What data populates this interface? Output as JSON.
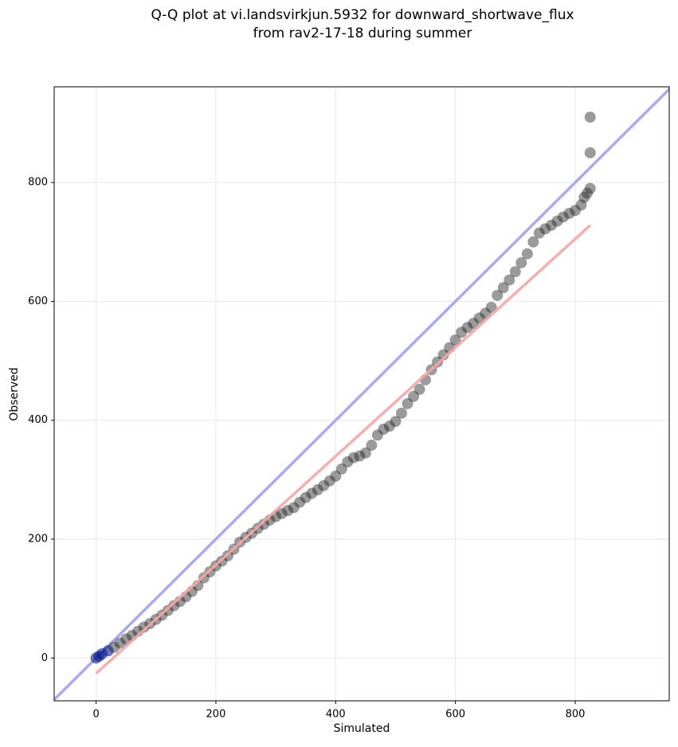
{
  "chart_data": {
    "type": "scatter",
    "title": [
      "Q-Q plot at vi.landsvirkjun.5932 for downward_shortwave_flux",
      "from rav2-17-18 during summer"
    ],
    "xlabel": "Simulated",
    "ylabel": "Observed",
    "xlim": [
      -70,
      957
    ],
    "ylim": [
      -72,
      961
    ],
    "xticks": [
      0,
      200,
      400,
      600,
      800
    ],
    "yticks": [
      0,
      200,
      400,
      600,
      800
    ],
    "grid": true,
    "color": "#222222",
    "early_color": "#0a1a8a",
    "identity_line_color": "#aaaaf2",
    "fit_line": {
      "x": [
        0,
        825
      ],
      "y": [
        -26,
        728
      ],
      "color": "#f5a5a5"
    },
    "x": [
      0,
      5,
      10,
      20,
      30,
      40,
      50,
      60,
      70,
      80,
      90,
      100,
      110,
      120,
      130,
      140,
      150,
      160,
      170,
      180,
      190,
      200,
      210,
      220,
      230,
      240,
      250,
      260,
      270,
      280,
      290,
      300,
      310,
      320,
      330,
      340,
      350,
      360,
      370,
      380,
      390,
      400,
      410,
      420,
      430,
      440,
      450,
      460,
      470,
      480,
      490,
      500,
      510,
      520,
      530,
      540,
      550,
      560,
      570,
      580,
      590,
      600,
      610,
      620,
      630,
      640,
      650,
      660,
      670,
      680,
      690,
      700,
      710,
      720,
      730,
      740,
      750,
      760,
      770,
      780,
      790,
      800,
      810,
      815,
      820,
      825,
      825,
      825
    ],
    "y": [
      0,
      3,
      7,
      12,
      18,
      25,
      32,
      38,
      45,
      52,
      58,
      65,
      72,
      80,
      88,
      95,
      103,
      112,
      122,
      135,
      145,
      155,
      163,
      172,
      183,
      195,
      203,
      210,
      218,
      225,
      232,
      238,
      243,
      248,
      253,
      262,
      270,
      277,
      283,
      290,
      298,
      306,
      318,
      330,
      337,
      340,
      345,
      358,
      375,
      385,
      390,
      398,
      412,
      428,
      440,
      452,
      468,
      485,
      498,
      510,
      522,
      535,
      548,
      556,
      563,
      572,
      580,
      590,
      610,
      623,
      636,
      650,
      665,
      680,
      700,
      715,
      722,
      728,
      735,
      742,
      748,
      753,
      762,
      775,
      782,
      790,
      850,
      910
    ]
  }
}
